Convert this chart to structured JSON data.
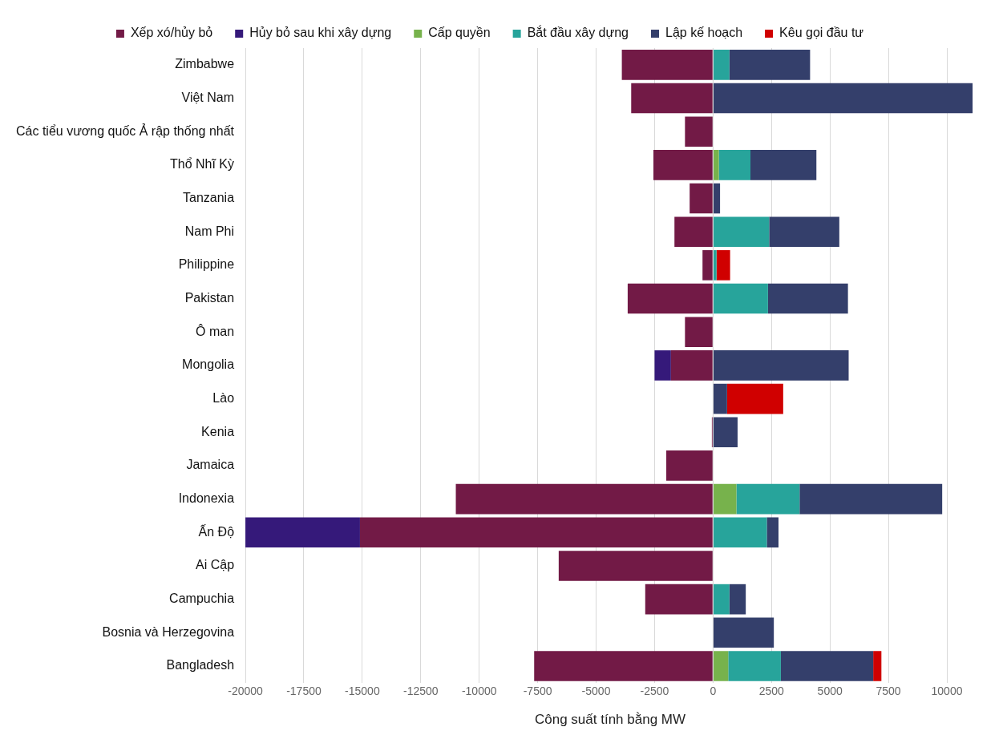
{
  "chart_data": {
    "type": "bar",
    "orientation": "horizontal",
    "stacked": true,
    "xlabel": "Công suất tính bằng MW",
    "categories": [
      "Zimbabwe",
      "Việt Nam",
      "Các tiểu vương quốc Ả rập thống nhất",
      "Thổ Nhĩ Kỳ",
      "Tanzania",
      "Nam Phi",
      "Philippine",
      "Pakistan",
      "Ô man",
      "Mongolia",
      "Lào",
      "Kenia",
      "Jamaica",
      "Indonexia",
      "Ấn Độ",
      "Ai Cập",
      "Campuchia",
      "Bosnia và Herzegovina",
      "Bangladesh"
    ],
    "series": [
      {
        "name": "Xếp xó/hủy bỏ",
        "color": "#721a46",
        "values": [
          -3900,
          -3500,
          -1200,
          -2550,
          -1000,
          -1650,
          -450,
          -3650,
          -1200,
          -1800,
          null,
          -50,
          -2000,
          -11000,
          -15100,
          -6600,
          -2900,
          null,
          -7650
        ]
      },
      {
        "name": "Hủy bỏ sau khi xây dựng",
        "color": "#35197a",
        "values": [
          null,
          null,
          null,
          null,
          null,
          null,
          null,
          null,
          null,
          -700,
          null,
          null,
          null,
          null,
          -4900,
          null,
          null,
          null,
          null
        ]
      },
      {
        "name": "Cấp quyền",
        "color": "#77b24c",
        "values": [
          null,
          null,
          null,
          250,
          null,
          null,
          null,
          null,
          null,
          null,
          null,
          null,
          null,
          1000,
          null,
          null,
          null,
          null,
          650
        ]
      },
      {
        "name": "Bắt đầu xây dựng",
        "color": "#27a49b",
        "values": [
          700,
          null,
          null,
          1350,
          null,
          2400,
          150,
          2350,
          null,
          null,
          null,
          null,
          null,
          2700,
          2300,
          null,
          700,
          null,
          2250
        ]
      },
      {
        "name": "Lập kế hoạch",
        "color": "#343f6b",
        "values": [
          3450,
          11100,
          null,
          2820,
          300,
          3000,
          null,
          3420,
          null,
          5800,
          600,
          1050,
          null,
          6100,
          500,
          null,
          700,
          2600,
          3950
        ]
      },
      {
        "name": "Kêu gọi đầu tư",
        "color": "#d00000",
        "values": [
          null,
          null,
          null,
          null,
          null,
          null,
          580,
          null,
          null,
          null,
          2400,
          null,
          null,
          null,
          null,
          null,
          null,
          null,
          350
        ]
      }
    ],
    "xlim": [
      -20000,
      11200
    ],
    "xticks": [
      -20000,
      -17500,
      -15000,
      -12500,
      -10000,
      -7500,
      -5000,
      -2500,
      0,
      2500,
      5000,
      7500,
      10000
    ],
    "grid": "x",
    "legend": "top"
  }
}
